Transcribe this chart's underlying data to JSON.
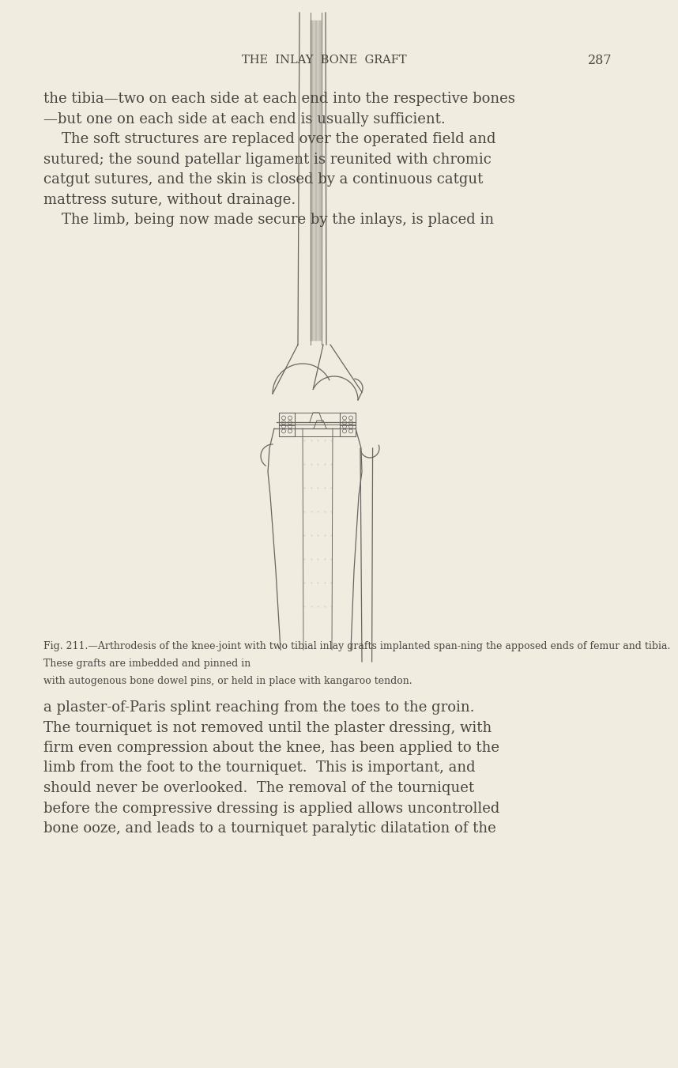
{
  "background_color": "#f0ede0",
  "page_width": 8.0,
  "page_height": 13.31,
  "header_title": "THE  INLAY  BONE  GRAFT",
  "header_page": "287",
  "text_color": "#4a4540",
  "line_color": "#6a6560",
  "body_text_top": [
    "the tibia—two on each side at each end into the respective bones",
    "—but one on each side at each end is usually sufficient.",
    "    The soft structures are replaced over the operated field and",
    "sutured; the sound patellar ligament is reunited with chromic",
    "catgut sutures, and the skin is closed by a continuous catgut",
    "mattress suture, without drainage.",
    "    The limb, being now made secure by the inlays, is placed in"
  ],
  "caption_line1": "Fig. 211.—Arthrodesis of the knee-joint with two tibial inlay grafts implanted span­ning the apposed ends of femur and tibia.",
  "caption_line2": "  These grafts are imbedded and pinned in",
  "caption_line3": "with autogenous bone dowel pins, or held in place with kangaroo tendon.",
  "body_text_bottom": [
    "a plaster-of-Paris splint reaching from the toes to the groin.",
    "The tourniquet is not removed until the plaster dressing, with",
    "firm even compression about the knee, has been applied to the",
    "limb from the foot to the tourniquet.  This is important, and",
    "should never be overlooked.  The removal of the tourniquet",
    "before the compressive dressing is applied allows uncontrolled",
    "bone ooze, and leads to a tourniquet paralytic dilatation of the"
  ],
  "font_size_body": 13.0,
  "font_size_header": 10.5,
  "font_size_caption": 9.0
}
